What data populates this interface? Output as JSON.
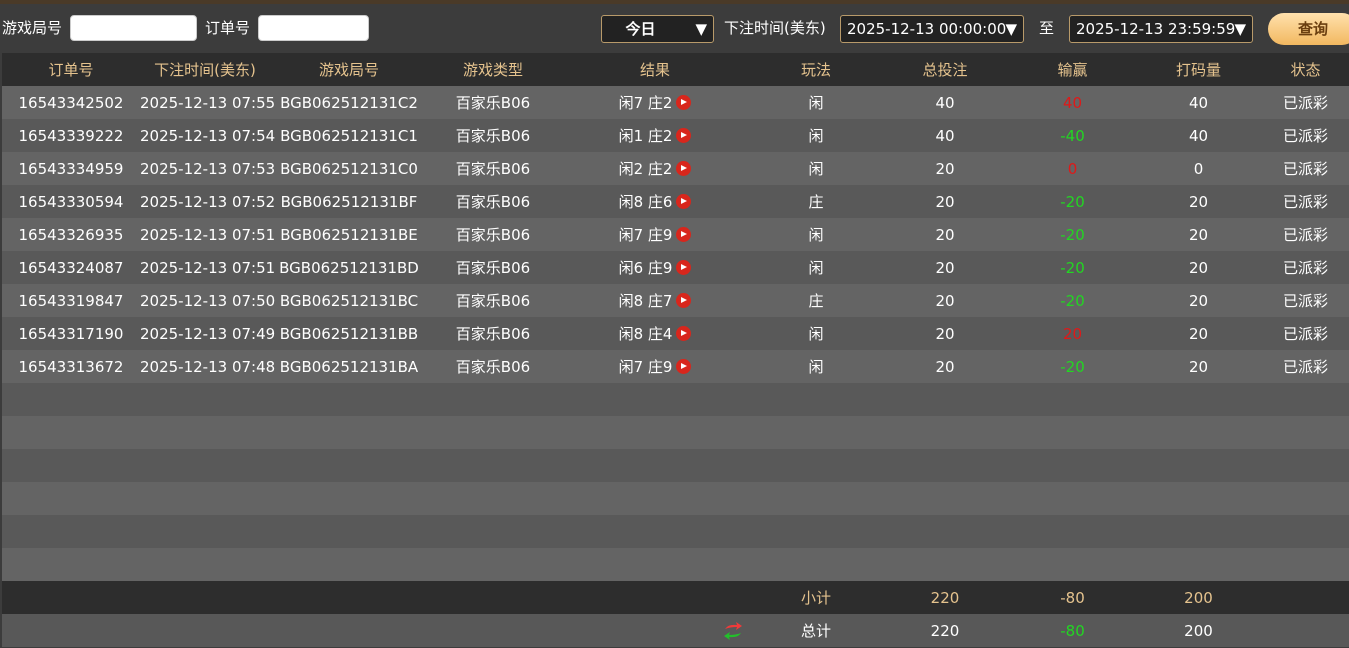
{
  "filters": {
    "round_label": "游戏局号",
    "round_value": "",
    "order_label": "订单号",
    "order_value": "",
    "range_select": "今日",
    "time_label": "下注时间(美东)",
    "start": "2025-12-13 00:00:00",
    "to": "至",
    "end": "2025-12-13 23:59:59",
    "query": "查询"
  },
  "columns": [
    "订单号",
    "下注时间(美东)",
    "游戏局号",
    "游戏类型",
    "结果",
    "玩法",
    "总投注",
    "输赢",
    "打码量",
    "状态"
  ],
  "rows": [
    [
      "16543342502",
      "2025-12-13 07:55",
      "BGB062512131C2",
      "百家乐B06",
      "闲7 庄2",
      "闲",
      "40",
      "40",
      "40",
      "已派彩",
      "red"
    ],
    [
      "16543339222",
      "2025-12-13 07:54",
      "BGB062512131C1",
      "百家乐B06",
      "闲1 庄2",
      "闲",
      "40",
      "-40",
      "40",
      "已派彩",
      "green"
    ],
    [
      "16543334959",
      "2025-12-13 07:53",
      "BGB062512131C0",
      "百家乐B06",
      "闲2 庄2",
      "闲",
      "20",
      "0",
      "0",
      "已派彩",
      "red"
    ],
    [
      "16543330594",
      "2025-12-13 07:52",
      "BGB062512131BF",
      "百家乐B06",
      "闲8 庄6",
      "庄",
      "20",
      "-20",
      "20",
      "已派彩",
      "green"
    ],
    [
      "16543326935",
      "2025-12-13 07:51",
      "BGB062512131BE",
      "百家乐B06",
      "闲7 庄9",
      "闲",
      "20",
      "-20",
      "20",
      "已派彩",
      "green"
    ],
    [
      "16543324087",
      "2025-12-13 07:51",
      "BGB062512131BD",
      "百家乐B06",
      "闲6 庄9",
      "闲",
      "20",
      "-20",
      "20",
      "已派彩",
      "green"
    ],
    [
      "16543319847",
      "2025-12-13 07:50",
      "BGB062512131BC",
      "百家乐B06",
      "闲8 庄7",
      "庄",
      "20",
      "-20",
      "20",
      "已派彩",
      "green"
    ],
    [
      "16543317190",
      "2025-12-13 07:49",
      "BGB062512131BB",
      "百家乐B06",
      "闲8 庄4",
      "闲",
      "20",
      "20",
      "20",
      "已派彩",
      "red"
    ],
    [
      "16543313672",
      "2025-12-13 07:48",
      "BGB062512131BA",
      "百家乐B06",
      "闲7 庄9",
      "闲",
      "20",
      "-20",
      "20",
      "已派彩",
      "green"
    ]
  ],
  "subtotal": {
    "label": "小计",
    "bet": "220",
    "win": "-80",
    "valid": "200"
  },
  "total": {
    "label": "总计",
    "bet": "220",
    "win": "-80",
    "valid": "200",
    "icon": "refresh-icon"
  },
  "colors": {
    "win": "#e01818",
    "loss": "#22d622",
    "header_text": "#e5c38e"
  }
}
